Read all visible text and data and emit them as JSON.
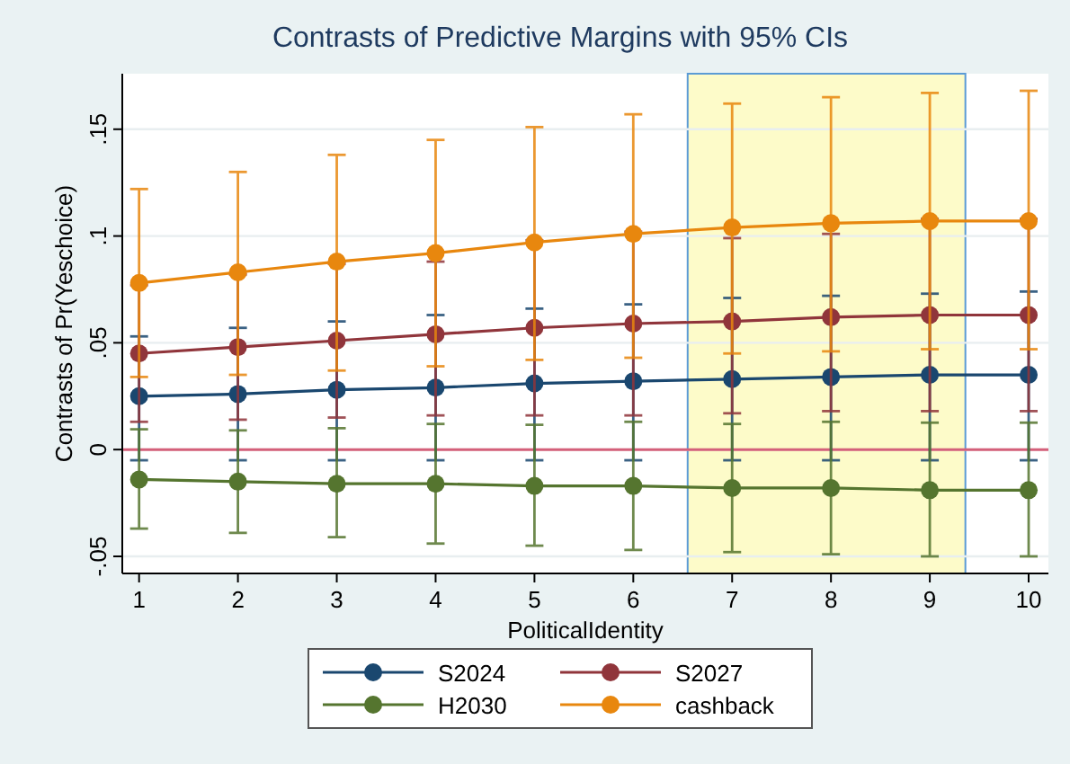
{
  "chart_data": {
    "type": "line",
    "title": "Contrasts of Predictive Margins with 95% CIs",
    "xlabel": "PoliticalIdentity",
    "ylabel": "Contrasts of Pr(Yeschoice)",
    "x": [
      1,
      2,
      3,
      4,
      5,
      6,
      7,
      8,
      9,
      10
    ],
    "xlim": [
      0.83,
      10.2
    ],
    "xticks": [
      1,
      2,
      3,
      4,
      5,
      6,
      7,
      8,
      9,
      10
    ],
    "ylim": [
      -0.058,
      0.176
    ],
    "yticks": [
      {
        "value": -0.05,
        "label": "-.05"
      },
      {
        "value": 0,
        "label": "0"
      },
      {
        "value": 0.05,
        "label": ".05"
      },
      {
        "value": 0.1,
        "label": ".1"
      },
      {
        "value": 0.15,
        "label": ".15"
      }
    ],
    "grid": "y",
    "legend": "bottom",
    "marker": "circle",
    "line_style": "solid",
    "ref_lines": [
      {
        "axis": "y",
        "value": 0,
        "label": null,
        "color": "#d4607a"
      }
    ],
    "bands": [
      {
        "axis": "x",
        "from": 6.55,
        "to": 9.36,
        "label": null,
        "color": "#fdfbc9"
      }
    ],
    "series": [
      {
        "name": "S2024",
        "color": "#1a476f",
        "values": [
          0.025,
          0.026,
          0.028,
          0.029,
          0.031,
          0.032,
          0.033,
          0.034,
          0.035,
          0.035
        ],
        "errors": [
          [
            -0.005,
            0.053
          ],
          [
            -0.005,
            0.057
          ],
          [
            -0.005,
            0.06
          ],
          [
            -0.005,
            0.063
          ],
          [
            -0.005,
            0.066
          ],
          [
            -0.005,
            0.068
          ],
          [
            -0.005,
            0.071
          ],
          [
            -0.005,
            0.072
          ],
          [
            -0.005,
            0.073
          ],
          [
            -0.005,
            0.074
          ]
        ]
      },
      {
        "name": "S2027",
        "color": "#90353b",
        "values": [
          0.045,
          0.048,
          0.051,
          0.054,
          0.057,
          0.059,
          0.06,
          0.062,
          0.063,
          0.063
        ],
        "errors": [
          [
            0.013,
            0.077
          ],
          [
            0.014,
            0.082
          ],
          [
            0.015,
            0.087
          ],
          [
            0.016,
            0.088
          ],
          [
            0.016,
            0.098
          ],
          [
            0.016,
            0.102
          ],
          [
            0.017,
            0.099
          ],
          [
            0.018,
            0.101
          ],
          [
            0.018,
            0.108
          ],
          [
            0.018,
            0.108
          ]
        ]
      },
      {
        "name": "H2030",
        "color": "#55752f",
        "values": [
          -0.014,
          -0.015,
          -0.016,
          -0.016,
          -0.017,
          -0.017,
          -0.018,
          -0.018,
          -0.019,
          -0.019
        ],
        "errors": [
          [
            -0.037,
            0.0095
          ],
          [
            -0.039,
            0.009
          ],
          [
            -0.041,
            0.01
          ],
          [
            -0.044,
            0.012
          ],
          [
            -0.045,
            0.0116
          ],
          [
            -0.047,
            0.013
          ],
          [
            -0.048,
            0.012
          ],
          [
            -0.049,
            0.013
          ],
          [
            -0.05,
            0.0126
          ],
          [
            -0.05,
            0.0126
          ]
        ]
      },
      {
        "name": "cashback",
        "color": "#e8870e",
        "values": [
          0.078,
          0.083,
          0.088,
          0.092,
          0.097,
          0.101,
          0.104,
          0.106,
          0.107,
          0.107
        ],
        "errors": [
          [
            0.034,
            0.122
          ],
          [
            0.035,
            0.13
          ],
          [
            0.037,
            0.138
          ],
          [
            0.039,
            0.145
          ],
          [
            0.042,
            0.151
          ],
          [
            0.043,
            0.157
          ],
          [
            0.045,
            0.162
          ],
          [
            0.046,
            0.165
          ],
          [
            0.047,
            0.167
          ],
          [
            0.047,
            0.168
          ]
        ]
      }
    ]
  }
}
